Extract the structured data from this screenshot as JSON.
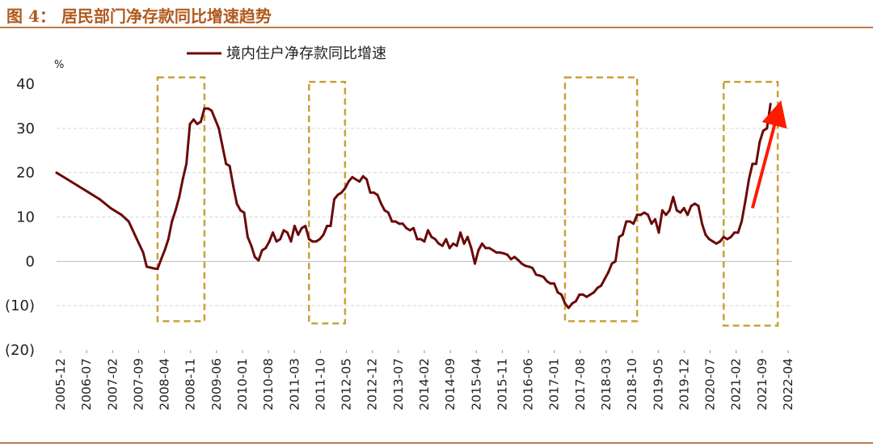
{
  "figure": {
    "title": "图 4：  居民部门净存款同比增速趋势"
  },
  "colors": {
    "title": "#b05a1e",
    "rule": "#b87a4b",
    "series": "#6b0a0a",
    "box": "#c9a13a",
    "negative_tick": "#e00000",
    "arrow": "#ff1a00"
  },
  "chart_data": {
    "type": "line",
    "unit_label": "%",
    "ylim": [
      -20,
      40
    ],
    "y_ticks": [
      40,
      30,
      20,
      10,
      0,
      -10,
      -20
    ],
    "y_tick_labels": [
      "40",
      "30",
      "20",
      "10",
      "0",
      "(10)",
      "(20)"
    ],
    "grid": "horizontal dashed",
    "legend_position": "top-center",
    "x_tick_labels": [
      "2005-12",
      "2006-07",
      "2007-02",
      "2007-09",
      "2008-04",
      "2008-11",
      "2009-06",
      "2010-01",
      "2010-08",
      "2011-03",
      "2011-10",
      "2012-05",
      "2012-12",
      "2013-07",
      "2014-02",
      "2014-09",
      "2015-04",
      "2015-11",
      "2016-06",
      "2017-01",
      "2017-08",
      "2018-03",
      "2018-10",
      "2019-05",
      "2019-12",
      "2020-07",
      "2021-02",
      "2021-09",
      "2022-04"
    ],
    "series": [
      {
        "name": "境内住户净存款同比增速",
        "points": [
          [
            "2005-12",
            20.0
          ],
          [
            "2006-03",
            18.5
          ],
          [
            "2006-06",
            17.0
          ],
          [
            "2006-09",
            15.5
          ],
          [
            "2006-12",
            14.0
          ],
          [
            "2007-03",
            12.0
          ],
          [
            "2007-06",
            10.5
          ],
          [
            "2007-08",
            9.0
          ],
          [
            "2007-10",
            5.5
          ],
          [
            "2007-12",
            2.0
          ],
          [
            "2008-01",
            -1.2
          ],
          [
            "2008-02",
            -1.4
          ],
          [
            "2008-03",
            -1.6
          ],
          [
            "2008-04",
            -1.7
          ],
          [
            "2008-05",
            0.5
          ],
          [
            "2008-06",
            2.5
          ],
          [
            "2008-07",
            5.0
          ],
          [
            "2008-08",
            9.0
          ],
          [
            "2008-09",
            11.5
          ],
          [
            "2008-10",
            14.5
          ],
          [
            "2008-11",
            18.5
          ],
          [
            "2008-12",
            22.0
          ],
          [
            "2009-01",
            31.0
          ],
          [
            "2009-02",
            32.0
          ],
          [
            "2009-03",
            31.0
          ],
          [
            "2009-04",
            31.5
          ],
          [
            "2009-05",
            34.5
          ],
          [
            "2009-06",
            34.5
          ],
          [
            "2009-07",
            34.0
          ],
          [
            "2009-08",
            32.0
          ],
          [
            "2009-09",
            30.0
          ],
          [
            "2009-10",
            26.0
          ],
          [
            "2009-11",
            22.0
          ],
          [
            "2009-12",
            21.5
          ],
          [
            "2010-01",
            17.0
          ],
          [
            "2010-02",
            13.0
          ],
          [
            "2010-03",
            11.5
          ],
          [
            "2010-04",
            11.0
          ],
          [
            "2010-05",
            5.5
          ],
          [
            "2010-06",
            3.5
          ],
          [
            "2010-07",
            1.0
          ],
          [
            "2010-08",
            0.2
          ],
          [
            "2010-09",
            2.5
          ],
          [
            "2010-10",
            3.0
          ],
          [
            "2010-11",
            4.5
          ],
          [
            "2010-12",
            6.5
          ],
          [
            "2011-01",
            4.5
          ],
          [
            "2011-02",
            5.0
          ],
          [
            "2011-03",
            7.0
          ],
          [
            "2011-04",
            6.5
          ],
          [
            "2011-05",
            4.5
          ],
          [
            "2011-06",
            8.0
          ],
          [
            "2011-07",
            6.0
          ],
          [
            "2011-08",
            7.5
          ],
          [
            "2011-09",
            8.0
          ],
          [
            "2011-10",
            5.0
          ],
          [
            "2011-11",
            4.5
          ],
          [
            "2011-12",
            4.5
          ],
          [
            "2012-01",
            5.0
          ],
          [
            "2012-02",
            6.0
          ],
          [
            "2012-03",
            8.0
          ],
          [
            "2012-04",
            8.0
          ],
          [
            "2012-05",
            14.0
          ],
          [
            "2012-06",
            15.0
          ],
          [
            "2012-07",
            15.5
          ],
          [
            "2012-08",
            16.5
          ],
          [
            "2012-09",
            18.0
          ],
          [
            "2012-10",
            19.0
          ],
          [
            "2012-11",
            18.5
          ],
          [
            "2012-12",
            18.0
          ],
          [
            "2013-01",
            19.2
          ],
          [
            "2013-02",
            18.5
          ],
          [
            "2013-03",
            15.5
          ],
          [
            "2013-04",
            15.5
          ],
          [
            "2013-05",
            15.0
          ],
          [
            "2013-06",
            13.0
          ],
          [
            "2013-07",
            11.5
          ],
          [
            "2013-08",
            11.0
          ],
          [
            "2013-09",
            9.0
          ],
          [
            "2013-10",
            9.0
          ],
          [
            "2013-11",
            8.5
          ],
          [
            "2013-12",
            8.5
          ],
          [
            "2014-01",
            7.5
          ],
          [
            "2014-02",
            7.0
          ],
          [
            "2014-03",
            7.5
          ],
          [
            "2014-04",
            5.0
          ],
          [
            "2014-05",
            5.0
          ],
          [
            "2014-06",
            4.5
          ],
          [
            "2014-07",
            7.0
          ],
          [
            "2014-08",
            5.5
          ],
          [
            "2014-09",
            5.0
          ],
          [
            "2014-10",
            4.0
          ],
          [
            "2014-11",
            3.5
          ],
          [
            "2014-12",
            5.0
          ],
          [
            "2015-01",
            3.0
          ],
          [
            "2015-02",
            4.0
          ],
          [
            "2015-03",
            3.5
          ],
          [
            "2015-04",
            6.5
          ],
          [
            "2015-05",
            4.0
          ],
          [
            "2015-06",
            5.5
          ],
          [
            "2015-07",
            3.0
          ],
          [
            "2015-08",
            -0.5
          ],
          [
            "2015-09",
            2.5
          ],
          [
            "2015-10",
            4.0
          ],
          [
            "2015-11",
            3.0
          ],
          [
            "2015-12",
            3.0
          ],
          [
            "2016-01",
            2.5
          ],
          [
            "2016-02",
            2.0
          ],
          [
            "2016-03",
            2.0
          ],
          [
            "2016-04",
            1.8
          ],
          [
            "2016-05",
            1.5
          ],
          [
            "2016-06",
            0.5
          ],
          [
            "2016-07",
            1.0
          ],
          [
            "2016-08",
            0.3
          ],
          [
            "2016-09",
            -0.5
          ],
          [
            "2016-10",
            -1.0
          ],
          [
            "2016-11",
            -1.2
          ],
          [
            "2016-12",
            -1.5
          ],
          [
            "2017-01",
            -3.0
          ],
          [
            "2017-02",
            -3.2
          ],
          [
            "2017-03",
            -3.5
          ],
          [
            "2017-04",
            -4.5
          ],
          [
            "2017-05",
            -5.0
          ],
          [
            "2017-06",
            -5.0
          ],
          [
            "2017-07",
            -7.0
          ],
          [
            "2017-08",
            -7.5
          ],
          [
            "2017-09",
            -9.5
          ],
          [
            "2017-10",
            -10.5
          ],
          [
            "2017-11",
            -9.5
          ],
          [
            "2017-12",
            -9.0
          ],
          [
            "2018-01",
            -7.5
          ],
          [
            "2018-02",
            -7.5
          ],
          [
            "2018-03",
            -8.0
          ],
          [
            "2018-04",
            -7.5
          ],
          [
            "2018-05",
            -7.0
          ],
          [
            "2018-06",
            -6.0
          ],
          [
            "2018-07",
            -5.5
          ],
          [
            "2018-08",
            -4.0
          ],
          [
            "2018-09",
            -2.5
          ],
          [
            "2018-10",
            -0.5
          ],
          [
            "2018-11",
            0.0
          ],
          [
            "2018-12",
            5.5
          ],
          [
            "2019-01",
            6.0
          ],
          [
            "2019-02",
            9.0
          ],
          [
            "2019-03",
            9.0
          ],
          [
            "2019-04",
            8.5
          ],
          [
            "2019-05",
            10.5
          ],
          [
            "2019-06",
            10.5
          ],
          [
            "2019-07",
            11.0
          ],
          [
            "2019-08",
            10.5
          ],
          [
            "2019-09",
            8.5
          ],
          [
            "2019-10",
            9.5
          ],
          [
            "2019-11",
            6.5
          ],
          [
            "2019-12",
            11.5
          ],
          [
            "2020-01",
            10.5
          ],
          [
            "2020-02",
            11.5
          ],
          [
            "2020-03",
            14.5
          ],
          [
            "2020-04",
            11.5
          ],
          [
            "2020-05",
            11.0
          ],
          [
            "2020-06",
            12.0
          ],
          [
            "2020-07",
            10.5
          ],
          [
            "2020-08",
            12.5
          ],
          [
            "2020-09",
            13.0
          ],
          [
            "2020-10",
            12.5
          ],
          [
            "2020-11",
            8.5
          ],
          [
            "2020-12",
            6.0
          ],
          [
            "2021-01",
            5.0
          ],
          [
            "2021-02",
            4.5
          ],
          [
            "2021-03",
            4.0
          ],
          [
            "2021-04",
            4.5
          ],
          [
            "2021-05",
            5.5
          ],
          [
            "2021-06",
            5.0
          ],
          [
            "2021-07",
            5.5
          ],
          [
            "2021-08",
            6.5
          ],
          [
            "2021-09",
            6.5
          ],
          [
            "2021-10",
            9.0
          ],
          [
            "2021-11",
            13.5
          ],
          [
            "2021-12",
            18.5
          ],
          [
            "2022-01",
            22.0
          ],
          [
            "2022-02",
            22.0
          ],
          [
            "2022-03",
            27.0
          ],
          [
            "2022-04",
            29.5
          ],
          [
            "2022-05",
            30.0
          ],
          [
            "2022-06",
            35.5
          ]
        ]
      }
    ],
    "highlight_boxes": [
      {
        "x_range": [
          "2008-04",
          "2009-05"
        ],
        "y_range": [
          -13.5,
          41.5
        ]
      },
      {
        "x_range": [
          "2011-10",
          "2012-08"
        ],
        "y_range": [
          -14.0,
          40.5
        ]
      },
      {
        "x_range": [
          "2017-09",
          "2019-05"
        ],
        "y_range": [
          -13.5,
          41.5
        ]
      },
      {
        "x_range": [
          "2021-05",
          "2022-08"
        ],
        "y_range": [
          -14.5,
          40.5
        ]
      }
    ],
    "trend_arrow": {
      "from": [
        "2022-01",
        12.0
      ],
      "to": [
        "2022-08",
        33.5
      ]
    }
  }
}
